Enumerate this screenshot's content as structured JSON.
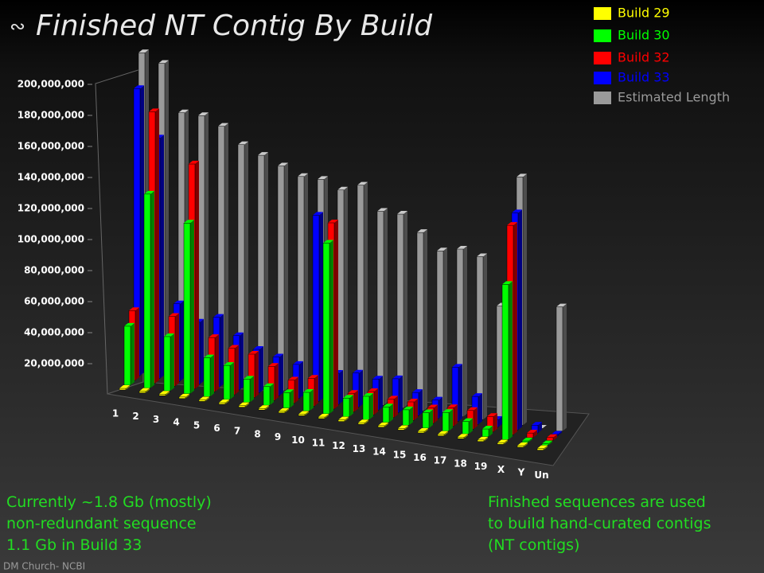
{
  "chart_data": {
    "type": "bar",
    "title": "Finished NT Contig By Build",
    "categories": [
      "1",
      "2",
      "3",
      "4",
      "5",
      "6",
      "7",
      "8",
      "9",
      "10",
      "11",
      "12",
      "13",
      "14",
      "15",
      "16",
      "17",
      "18",
      "19",
      "X",
      "Y",
      "Un"
    ],
    "series": [
      {
        "name": "Build 29",
        "color": "#ffff00",
        "values": [
          1000000,
          1000000,
          1000000,
          1000000,
          1000000,
          1000000,
          1000000,
          1000000,
          1000000,
          1000000,
          1000000,
          1000000,
          1000000,
          1000000,
          1000000,
          1000000,
          1000000,
          1000000,
          1000000,
          1000000,
          1000000,
          1000000
        ]
      },
      {
        "name": "Build 30",
        "color": "#00ff00",
        "values": [
          38000000,
          125000000,
          35000000,
          110000000,
          25000000,
          22000000,
          15000000,
          12000000,
          10000000,
          12000000,
          110000000,
          12000000,
          15000000,
          10000000,
          10000000,
          10000000,
          12000000,
          8000000,
          5000000,
          100000000,
          1000000,
          1000000
        ]
      },
      {
        "name": "Build 32",
        "color": "#ff0000",
        "values": [
          45000000,
          175000000,
          45000000,
          145000000,
          35000000,
          30000000,
          28000000,
          22000000,
          15000000,
          18000000,
          120000000,
          12000000,
          15000000,
          12000000,
          12000000,
          10000000,
          12000000,
          12000000,
          10000000,
          135000000,
          3000000,
          2000000
        ]
      },
      {
        "name": "Build 33",
        "color": "#0000ff",
        "values": [
          185000000,
          155000000,
          50000000,
          40000000,
          45000000,
          35000000,
          28000000,
          25000000,
          22000000,
          120000000,
          20000000,
          22000000,
          20000000,
          22000000,
          15000000,
          12000000,
          35000000,
          18000000,
          5000000,
          140000000,
          5000000,
          1000000
        ]
      },
      {
        "name": "Estimated Length",
        "color": "#9a9a9a",
        "values": [
          205000000,
          200000000,
          170000000,
          170000000,
          165000000,
          155000000,
          150000000,
          145000000,
          140000000,
          140000000,
          135000000,
          140000000,
          125000000,
          125000000,
          115000000,
          105000000,
          108000000,
          105000000,
          75000000,
          160000000,
          0,
          80000000
        ]
      }
    ],
    "ylim": [
      0,
      200000000
    ],
    "yticks": [
      {
        "value": 20000000,
        "label": "20,000,000"
      },
      {
        "value": 40000000,
        "label": "40,000,000"
      },
      {
        "value": 60000000,
        "label": "60,000,000"
      },
      {
        "value": 80000000,
        "label": "80,000,000"
      },
      {
        "value": 100000000,
        "label": "100,000,000"
      },
      {
        "value": 120000000,
        "label": "120,000,000"
      },
      {
        "value": 140000000,
        "label": "140,000,000"
      },
      {
        "value": 160000000,
        "label": "160,000,000"
      },
      {
        "value": 180000000,
        "label": "180,000,000"
      },
      {
        "value": 200000000,
        "label": "200,000,000"
      }
    ],
    "legend": "top-right"
  },
  "slide": {
    "notes_left": [
      "Currently ~1.8 Gb (mostly)",
      "non-redundant sequence",
      "1.1 Gb in Build 33"
    ],
    "notes_right": [
      "Finished sequences are used",
      "to build hand-curated contigs",
      "(NT contigs)"
    ],
    "footer": "DM Church- NCBI"
  }
}
